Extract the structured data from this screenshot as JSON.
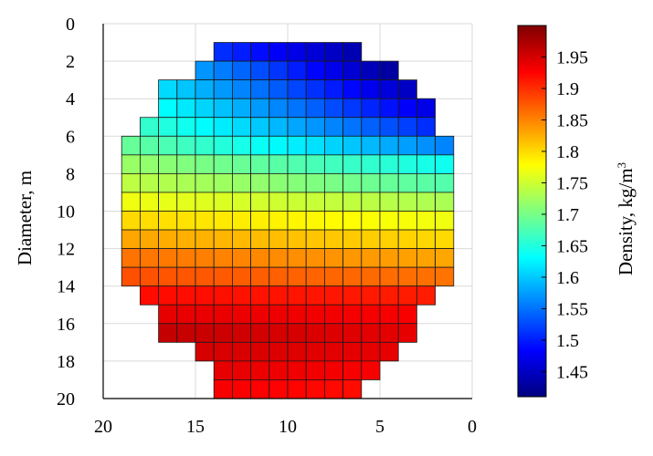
{
  "chart_data": {
    "type": "heatmap",
    "xlabel": "",
    "ylabel": "Diameter, m",
    "colorbar_label": "Density, kg/m",
    "colorbar_label_superscript": "3",
    "x_axis": {
      "ticks": [
        20,
        15,
        10,
        5,
        0
      ],
      "range": [
        20,
        0
      ],
      "reversed": true
    },
    "y_axis": {
      "ticks": [
        0,
        2,
        4,
        6,
        8,
        10,
        12,
        14,
        16,
        18,
        20
      ],
      "range": [
        0,
        20
      ],
      "inverted": true
    },
    "colorbar": {
      "ticks": [
        "1.95",
        "1.9",
        "1.85",
        "1.8",
        "1.75",
        "1.7",
        "1.65",
        "1.6",
        "1.55",
        "1.5",
        "1.45"
      ],
      "tick_values": [
        1.95,
        1.9,
        1.85,
        1.8,
        1.75,
        1.7,
        1.65,
        1.6,
        1.55,
        1.5,
        1.45
      ],
      "range": [
        1.41,
        2.0
      ],
      "colormap": "jet"
    },
    "grid": true,
    "cell_size_m": 1,
    "rows": [
      {
        "y": [
          1,
          2
        ],
        "x_range": [
          14,
          6
        ],
        "density_left": 1.51,
        "density_right": 1.44
      },
      {
        "y": [
          2,
          3
        ],
        "x_range": [
          15,
          4
        ],
        "density_left": 1.57,
        "density_right": 1.43
      },
      {
        "y": [
          3,
          4
        ],
        "x_range": [
          17,
          3
        ],
        "density_left": 1.61,
        "density_right": 1.45
      },
      {
        "y": [
          4,
          5
        ],
        "x_range": [
          17,
          2
        ],
        "density_left": 1.63,
        "density_right": 1.47
      },
      {
        "y": [
          5,
          6
        ],
        "x_range": [
          18,
          2
        ],
        "density_left": 1.66,
        "density_right": 1.51
      },
      {
        "y": [
          6,
          7
        ],
        "x_range": [
          19,
          1
        ],
        "density_left": 1.69,
        "density_right": 1.56
      },
      {
        "y": [
          7,
          8
        ],
        "x_range": [
          19,
          1
        ],
        "density_left": 1.72,
        "density_right": 1.64
      },
      {
        "y": [
          8,
          9
        ],
        "x_range": [
          19,
          1
        ],
        "density_left": 1.74,
        "density_right": 1.68
      },
      {
        "y": [
          9,
          10
        ],
        "x_range": [
          19,
          1
        ],
        "density_left": 1.77,
        "density_right": 1.73
      },
      {
        "y": [
          10,
          11
        ],
        "x_range": [
          19,
          1
        ],
        "density_left": 1.8,
        "density_right": 1.77
      },
      {
        "y": [
          11,
          12
        ],
        "x_range": [
          19,
          1
        ],
        "density_left": 1.83,
        "density_right": 1.8
      },
      {
        "y": [
          12,
          13
        ],
        "x_range": [
          19,
          1
        ],
        "density_left": 1.86,
        "density_right": 1.83
      },
      {
        "y": [
          13,
          14
        ],
        "x_range": [
          19,
          1
        ],
        "density_left": 1.88,
        "density_right": 1.86
      },
      {
        "y": [
          14,
          15
        ],
        "x_range": [
          18,
          2
        ],
        "density_left": 1.92,
        "density_right": 1.91
      },
      {
        "y": [
          15,
          16
        ],
        "x_range": [
          17,
          3
        ],
        "density_left": 1.94,
        "density_right": 1.93
      },
      {
        "y": [
          16,
          17
        ],
        "x_range": [
          17,
          3
        ],
        "density_left": 1.96,
        "density_right": 1.94
      },
      {
        "y": [
          17,
          18
        ],
        "x_range": [
          15,
          4
        ],
        "density_left": 1.95,
        "density_right": 1.94
      },
      {
        "y": [
          18,
          19
        ],
        "x_range": [
          14,
          5
        ],
        "density_left": 1.94,
        "density_right": 1.93
      },
      {
        "y": [
          19,
          20
        ],
        "x_range": [
          14,
          6
        ],
        "density_left": 1.93,
        "density_right": 1.92
      }
    ]
  }
}
